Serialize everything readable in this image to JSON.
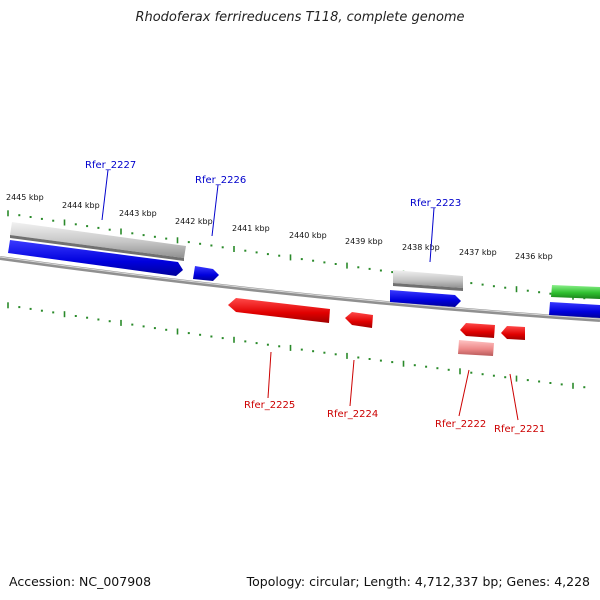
{
  "title": "Rhodoferax ferrireducens T118, complete genome",
  "footer": {
    "accession": "Accession: NC_007908",
    "summary": "Topology: circular; Length: 4,712,337 bp; Genes: 4,228"
  },
  "colors": {
    "backbone": "#888888",
    "tick": "#2a8a2a",
    "forward_gene": "#0000ee",
    "reverse_gene": "#ee0000",
    "rna_gene": "#33bb33",
    "forward_label": "#0000cc",
    "reverse_label": "#cc0000"
  },
  "ruler": {
    "unit": "kbp",
    "ticks": [
      "2445 kbp",
      "2444 kbp",
      "2443 kbp",
      "2442 kbp",
      "2441 kbp",
      "2440 kbp",
      "2439 kbp",
      "2438 kbp",
      "2437 kbp",
      "2436 kbp"
    ]
  },
  "genes": {
    "forward_labeled": [
      "Rfer_2227",
      "Rfer_2226",
      "Rfer_2223"
    ],
    "reverse_labeled": [
      "Rfer_2225",
      "Rfer_2224",
      "Rfer_2222",
      "Rfer_2221"
    ]
  }
}
